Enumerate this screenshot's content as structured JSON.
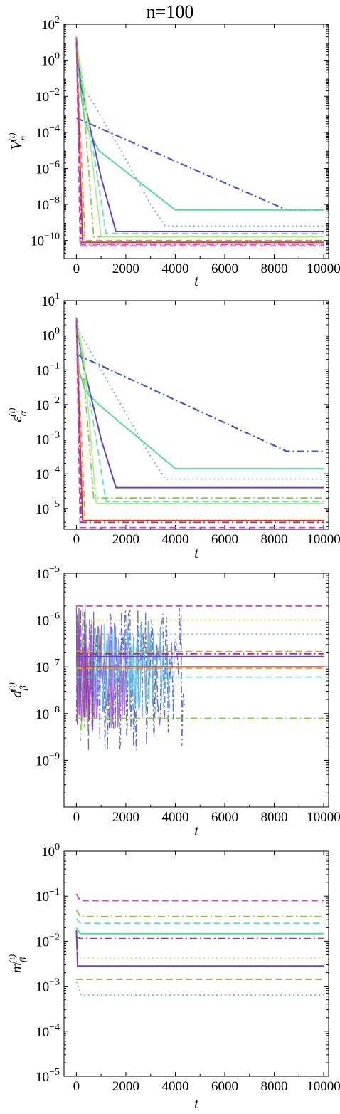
{
  "figure_title": "n=100",
  "chart_data": [
    {
      "type": "line",
      "title": "",
      "xlabel": "t",
      "ylabel": "V_n^(t)",
      "yscale": "log",
      "xlim": [
        -500,
        10200
      ],
      "ylim_exp": [
        -11,
        2
      ],
      "xticks": [
        "0",
        "2000",
        "4000",
        "6000",
        "8000",
        "10000"
      ],
      "ytick_exps": [
        -10,
        -8,
        -6,
        -4,
        -2,
        0,
        2
      ],
      "series": [
        {
          "color": "#4455cc",
          "dash": "dashdot",
          "width": 2.2,
          "points": [
            [
              0,
              -3.2
            ],
            [
              8500,
              -8.3
            ],
            [
              10000,
              -8.3
            ]
          ]
        },
        {
          "color": "#55dd99",
          "dash": "solid",
          "width": 2.0,
          "points": [
            [
              0,
              1.2
            ],
            [
              150,
              -1.5
            ],
            [
              350,
              -3.5
            ],
            [
              900,
              -5.0
            ],
            [
              4000,
              -8.3
            ],
            [
              10000,
              -8.3
            ]
          ]
        },
        {
          "color": "#77aadd",
          "dash": "dot",
          "width": 1.8,
          "points": [
            [
              0,
              1.0
            ],
            [
              300,
              -1.5
            ],
            [
              1800,
              -5.0
            ],
            [
              3000,
              -8.0
            ],
            [
              3600,
              -9.2
            ],
            [
              10000,
              -9.2
            ]
          ]
        },
        {
          "color": "#6644cc",
          "dash": "solid",
          "width": 2.0,
          "points": [
            [
              0,
              1.2
            ],
            [
              200,
              -1.5
            ],
            [
              1000,
              -6.5
            ],
            [
              1600,
              -9.5
            ],
            [
              10000,
              -9.5
            ]
          ]
        },
        {
          "color": "#66ddcc",
          "dash": "dash",
          "width": 1.8,
          "points": [
            [
              0,
              1.0
            ],
            [
              200,
              -1.2
            ],
            [
              800,
              -6.0
            ],
            [
              1200,
              -9.6
            ],
            [
              10000,
              -9.6
            ]
          ]
        },
        {
          "color": "#88cc44",
          "dash": "dashdot",
          "width": 1.8,
          "points": [
            [
              0,
              1.0
            ],
            [
              250,
              -1.5
            ],
            [
              700,
              -9.8
            ],
            [
              10000,
              -9.8
            ]
          ]
        },
        {
          "color": "#aaee88",
          "dash": "solid",
          "width": 1.6,
          "points": [
            [
              0,
              1.0
            ],
            [
              300,
              -1.5
            ],
            [
              1000,
              -9.8
            ],
            [
              10000,
              -9.8
            ]
          ]
        },
        {
          "color": "#dd9944",
          "dash": "dash",
          "width": 1.8,
          "points": [
            [
              0,
              1.0
            ],
            [
              350,
              -10.0
            ],
            [
              10000,
              -10.0
            ]
          ]
        },
        {
          "color": "#dddd55",
          "dash": "dot",
          "width": 1.8,
          "points": [
            [
              0,
              1.0
            ],
            [
              300,
              -10.1
            ],
            [
              10000,
              -10.1
            ]
          ]
        },
        {
          "color": "#dd3333",
          "dash": "solid",
          "width": 1.8,
          "points": [
            [
              0,
              1.0
            ],
            [
              250,
              -10.1
            ],
            [
              10000,
              -10.1
            ]
          ]
        },
        {
          "color": "#9933aa",
          "dash": "dashdot",
          "width": 1.8,
          "points": [
            [
              0,
              1.0
            ],
            [
              200,
              -10.2
            ],
            [
              10000,
              -10.2
            ]
          ]
        },
        {
          "color": "#cc44cc",
          "dash": "dash",
          "width": 1.8,
          "points": [
            [
              0,
              1.3
            ],
            [
              150,
              -10.3
            ],
            [
              10000,
              -10.3
            ]
          ]
        }
      ]
    },
    {
      "type": "line",
      "title": "",
      "xlabel": "t",
      "ylabel": "ε_α^(t)",
      "yscale": "log",
      "xlim": [
        -500,
        10200
      ],
      "ylim_exp": [
        -5.6,
        1
      ],
      "xticks": [
        "0",
        "2000",
        "4000",
        "6000",
        "8000",
        "10000"
      ],
      "ytick_exps": [
        -5,
        -4,
        -3,
        -2,
        -1,
        0,
        1
      ],
      "series": [
        {
          "color": "#4455cc",
          "dash": "dashdot",
          "width": 2.2,
          "points": [
            [
              0,
              -0.55
            ],
            [
              8500,
              -3.35
            ],
            [
              10000,
              -3.35
            ]
          ]
        },
        {
          "color": "#55dd99",
          "dash": "solid",
          "width": 2.0,
          "points": [
            [
              0,
              0.5
            ],
            [
              100,
              -1.0
            ],
            [
              350,
              -1.6
            ],
            [
              900,
              -2.0
            ],
            [
              4000,
              -3.85
            ],
            [
              10000,
              -3.85
            ]
          ]
        },
        {
          "color": "#77aadd",
          "dash": "dot",
          "width": 1.8,
          "points": [
            [
              0,
              0.3
            ],
            [
              200,
              0.0
            ],
            [
              1800,
              -2.0
            ],
            [
              3000,
              -3.5
            ],
            [
              3600,
              -4.15
            ],
            [
              10000,
              -4.15
            ]
          ]
        },
        {
          "color": "#6644cc",
          "dash": "solid",
          "width": 2.0,
          "points": [
            [
              0,
              0.5
            ],
            [
              200,
              -0.6
            ],
            [
              1000,
              -3.0
            ],
            [
              1600,
              -4.4
            ],
            [
              10000,
              -4.4
            ]
          ]
        },
        {
          "color": "#66ddcc",
          "dash": "dash",
          "width": 1.8,
          "points": [
            [
              0,
              0.4
            ],
            [
              200,
              -0.4
            ],
            [
              800,
              -3.0
            ],
            [
              1200,
              -4.8
            ],
            [
              10000,
              -4.8
            ]
          ]
        },
        {
          "color": "#88cc44",
          "dash": "dashdot",
          "width": 1.8,
          "points": [
            [
              0,
              0.4
            ],
            [
              250,
              -0.8
            ],
            [
              700,
              -4.7
            ],
            [
              10000,
              -4.7
            ]
          ]
        },
        {
          "color": "#aaee88",
          "dash": "solid",
          "width": 1.6,
          "points": [
            [
              0,
              0.4
            ],
            [
              300,
              -0.6
            ],
            [
              800,
              -4.85
            ],
            [
              10000,
              -4.85
            ]
          ]
        },
        {
          "color": "#dd9944",
          "dash": "dash",
          "width": 1.8,
          "points": [
            [
              0,
              0.4
            ],
            [
              350,
              -5.35
            ],
            [
              10000,
              -5.35
            ]
          ]
        },
        {
          "color": "#dddd55",
          "dash": "dot",
          "width": 1.8,
          "points": [
            [
              0,
              0.4
            ],
            [
              300,
              -5.3
            ],
            [
              10000,
              -5.3
            ]
          ]
        },
        {
          "color": "#dd3333",
          "dash": "solid",
          "width": 1.8,
          "points": [
            [
              0,
              0.4
            ],
            [
              250,
              -5.35
            ],
            [
              10000,
              -5.35
            ]
          ]
        },
        {
          "color": "#9933aa",
          "dash": "dashdot",
          "width": 1.8,
          "points": [
            [
              0,
              0.4
            ],
            [
              200,
              -5.4
            ],
            [
              10000,
              -5.4
            ]
          ]
        },
        {
          "color": "#cc44cc",
          "dash": "dash",
          "width": 1.8,
          "points": [
            [
              0,
              0.5
            ],
            [
              150,
              -5.55
            ],
            [
              10000,
              -5.55
            ]
          ]
        }
      ]
    },
    {
      "type": "line",
      "title": "",
      "xlabel": "t",
      "ylabel": "d_β^(t)",
      "yscale": "log",
      "xlim": [
        -500,
        10200
      ],
      "ylim_exp": [
        -10,
        -5
      ],
      "xticks": [
        "0",
        "2000",
        "4000",
        "6000",
        "8000",
        "10000"
      ],
      "ytick_exps": [
        -9,
        -8,
        -7,
        -6,
        -5
      ],
      "noise": [
        {
          "color": "#4455cc",
          "dash": "dashdot",
          "t_end": 4400,
          "center": -7.1,
          "amp": 1.6,
          "seed": 3
        },
        {
          "color": "#55aaee",
          "dash": "solid",
          "t_end": 3800,
          "center": -6.9,
          "amp": 1.0,
          "seed": 11
        },
        {
          "color": "#66ccdd",
          "dash": "dash",
          "t_end": 3000,
          "center": -6.95,
          "amp": 1.0,
          "seed": 7
        },
        {
          "color": "#88cc44",
          "dash": "dashdot",
          "t_end": 800,
          "center": -7.0,
          "amp": 1.5,
          "seed": 5
        },
        {
          "color": "#aa55dd",
          "dash": "solid",
          "t_end": 2000,
          "center": -7.0,
          "amp": 1.2,
          "seed": 13
        },
        {
          "color": "#9933aa",
          "dash": "solid",
          "t_end": 700,
          "center": -6.8,
          "amp": 1.5,
          "seed": 17
        }
      ],
      "series": [
        {
          "color": "#cc44cc",
          "dash": "dash",
          "width": 1.8,
          "points": [
            [
              0,
              -5.7
            ],
            [
              10000,
              -5.7
            ]
          ]
        },
        {
          "color": "#dddd55",
          "dash": "dot",
          "width": 1.8,
          "points": [
            [
              0,
              -6.0
            ],
            [
              10000,
              -6.0
            ]
          ]
        },
        {
          "color": "#77aadd",
          "dash": "dot",
          "width": 1.8,
          "points": [
            [
              0,
              -6.3
            ],
            [
              10000,
              -6.3
            ]
          ]
        },
        {
          "color": "#dd9944",
          "dash": "dash",
          "width": 1.8,
          "points": [
            [
              0,
              -6.67
            ],
            [
              10000,
              -6.67
            ]
          ]
        },
        {
          "color": "#9933aa",
          "dash": "dashdot",
          "width": 1.8,
          "points": [
            [
              0,
              -6.72
            ],
            [
              10000,
              -6.72
            ]
          ]
        },
        {
          "color": "#6644cc",
          "dash": "solid",
          "width": 2.0,
          "points": [
            [
              0,
              -6.78
            ],
            [
              10000,
              -6.78
            ]
          ]
        },
        {
          "color": "#dd3333",
          "dash": "solid",
          "width": 1.8,
          "points": [
            [
              0,
              -7.0
            ],
            [
              10000,
              -7.0
            ]
          ]
        },
        {
          "color": "#88cc44",
          "dash": "dash",
          "width": 1.8,
          "points": [
            [
              0,
              -7.03
            ],
            [
              10000,
              -7.03
            ]
          ]
        },
        {
          "color": "#66ddcc",
          "dash": "dash",
          "width": 1.8,
          "points": [
            [
              0,
              -7.22
            ],
            [
              10000,
              -7.22
            ]
          ]
        },
        {
          "color": "#88cc44",
          "dash": "dashdot",
          "width": 1.8,
          "points": [
            [
              0,
              -8.1
            ],
            [
              10000,
              -8.1
            ]
          ]
        }
      ]
    },
    {
      "type": "line",
      "title": "",
      "xlabel": "t",
      "ylabel": "m_β^(t)",
      "yscale": "log",
      "xlim": [
        -500,
        10200
      ],
      "ylim_exp": [
        -5,
        0
      ],
      "xticks": [
        "0",
        "2000",
        "4000",
        "6000",
        "8000",
        "10000"
      ],
      "ytick_exps": [
        -5,
        -4,
        -3,
        -2,
        -1,
        0
      ],
      "series": [
        {
          "color": "#cc44cc",
          "dash": "dash",
          "width": 1.8,
          "points": [
            [
              0,
              -0.95
            ],
            [
              150,
              -1.1
            ],
            [
              10000,
              -1.1
            ]
          ]
        },
        {
          "color": "#88cc44",
          "dash": "dashdot",
          "width": 1.8,
          "points": [
            [
              0,
              -1.3
            ],
            [
              150,
              -1.45
            ],
            [
              10000,
              -1.45
            ]
          ]
        },
        {
          "color": "#66ddcc",
          "dash": "dash",
          "width": 1.8,
          "points": [
            [
              0,
              -1.5
            ],
            [
              150,
              -1.6
            ],
            [
              10000,
              -1.6
            ]
          ]
        },
        {
          "color": "#55dd99",
          "dash": "solid",
          "width": 2.0,
          "points": [
            [
              0,
              -1.7
            ],
            [
              150,
              -1.83
            ],
            [
              10000,
              -1.83
            ]
          ]
        },
        {
          "color": "#9933aa",
          "dash": "dashdot",
          "width": 1.8,
          "points": [
            [
              0,
              -1.9
            ],
            [
              150,
              -1.94
            ],
            [
              10000,
              -1.94
            ]
          ]
        },
        {
          "color": "#6644cc",
          "dash": "solid",
          "width": 2.0,
          "points": [
            [
              0,
              -1.75
            ],
            [
              50,
              -2.55
            ],
            [
              10000,
              -2.55
            ]
          ]
        },
        {
          "color": "#dddd55",
          "dash": "dot",
          "width": 1.8,
          "points": [
            [
              0,
              -2.2
            ],
            [
              150,
              -2.38
            ],
            [
              10000,
              -2.38
            ]
          ]
        },
        {
          "color": "#dd9944",
          "dash": "dash",
          "width": 1.8,
          "points": [
            [
              0,
              -2.85
            ],
            [
              10000,
              -2.85
            ]
          ]
        },
        {
          "color": "#77aadd",
          "dash": "dot",
          "width": 1.8,
          "points": [
            [
              0,
              -2.9
            ],
            [
              200,
              -3.2
            ],
            [
              10000,
              -3.2
            ]
          ]
        }
      ]
    }
  ]
}
